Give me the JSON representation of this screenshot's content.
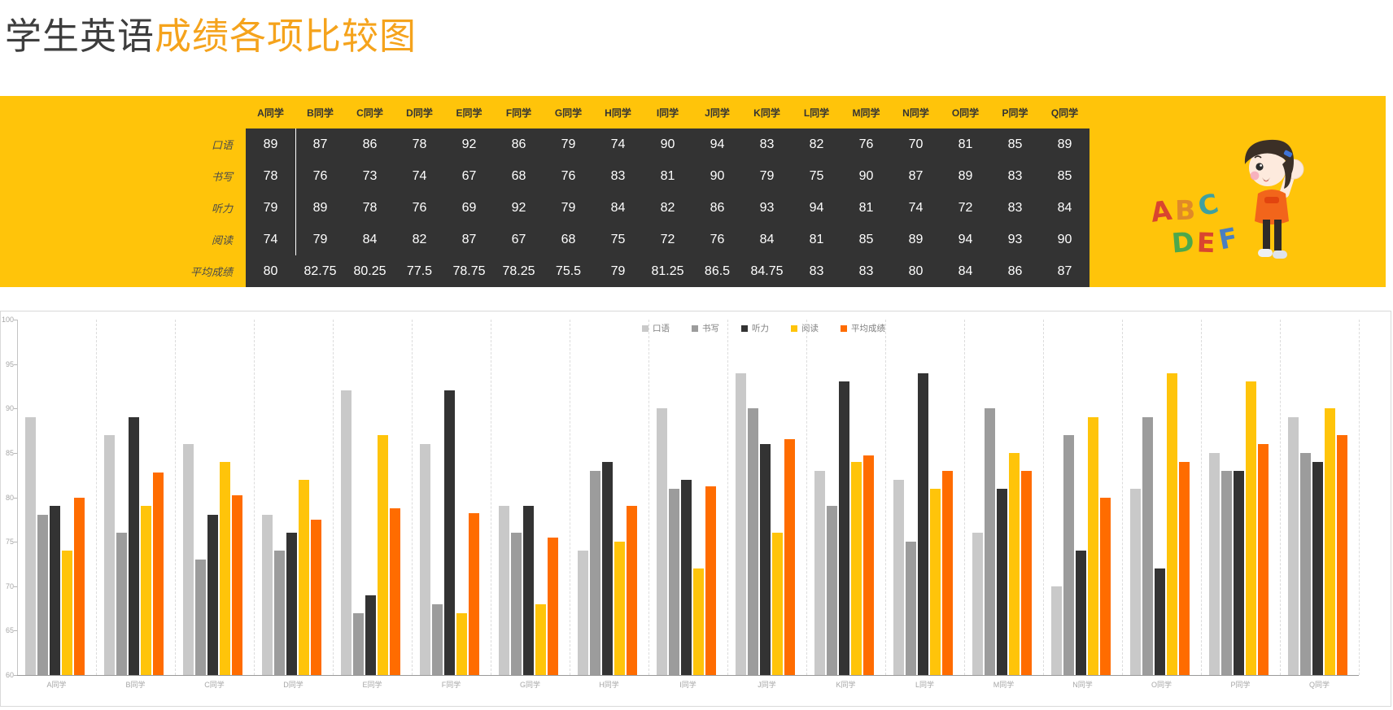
{
  "title": {
    "black": "学生英语",
    "orange": "成绩各项比较图"
  },
  "colors": {
    "banner_yellow": "#ffc40a",
    "table_dark": "#333333",
    "title_accent": "#f5a31c",
    "series_koyu": "#c9c9c9",
    "series_shuxie": "#9c9c9c",
    "series_tingli": "#333333",
    "series_yuedu": "#ffc40a",
    "series_pingjun": "#ff6c00"
  },
  "table": {
    "students": [
      "A同学",
      "B同学",
      "C同学",
      "D同学",
      "E同学",
      "F同学",
      "G同学",
      "H同学",
      "I同学",
      "J同学",
      "K同学",
      "L同学",
      "M同学",
      "N同学",
      "O同学",
      "P同学",
      "Q同学"
    ],
    "rows": [
      {
        "label": "口语",
        "values": [
          89,
          87,
          86,
          78,
          92,
          86,
          79,
          74,
          90,
          94,
          83,
          82,
          76,
          70,
          81,
          85,
          89
        ]
      },
      {
        "label": "书写",
        "values": [
          78,
          76,
          73,
          74,
          67,
          68,
          76,
          83,
          81,
          90,
          79,
          75,
          90,
          87,
          89,
          83,
          85
        ]
      },
      {
        "label": "听力",
        "values": [
          79,
          89,
          78,
          76,
          69,
          92,
          79,
          84,
          82,
          86,
          93,
          94,
          81,
          74,
          72,
          83,
          84
        ]
      },
      {
        "label": "阅读",
        "values": [
          74,
          79,
          84,
          82,
          87,
          67,
          68,
          75,
          72,
          76,
          84,
          81,
          85,
          89,
          94,
          93,
          90
        ]
      },
      {
        "label": "平均成绩",
        "values": [
          80,
          82.75,
          80.25,
          77.5,
          78.75,
          78.25,
          75.5,
          79,
          81.25,
          86.5,
          84.75,
          83,
          83,
          80,
          84,
          86,
          87
        ]
      }
    ]
  },
  "decoration": {
    "letters_line1": [
      "A",
      "B",
      "C"
    ],
    "letters_line2": [
      "D",
      "E",
      "F"
    ],
    "letter_colors_line1": [
      "#d9452f",
      "#e08a28",
      "#3fa0a0"
    ],
    "letter_colors_line2": [
      "#4ca84c",
      "#d9452f",
      "#4a7fc0"
    ]
  },
  "chart_data": {
    "type": "bar",
    "title": "",
    "xlabel": "",
    "ylabel": "",
    "categories": [
      "A同学",
      "B同学",
      "C同学",
      "D同学",
      "E同学",
      "F同学",
      "G同学",
      "H同学",
      "I同学",
      "J同学",
      "K同学",
      "L同学",
      "M同学",
      "N同学",
      "O同学",
      "P同学",
      "Q同学"
    ],
    "series": [
      {
        "name": "口语",
        "color": "#c9c9c9",
        "values": [
          89,
          87,
          86,
          78,
          92,
          86,
          79,
          74,
          90,
          94,
          83,
          82,
          76,
          70,
          81,
          85,
          89
        ]
      },
      {
        "name": "书写",
        "color": "#9c9c9c",
        "values": [
          78,
          76,
          73,
          74,
          67,
          68,
          76,
          83,
          81,
          90,
          79,
          75,
          90,
          87,
          89,
          83,
          85
        ]
      },
      {
        "name": "听力",
        "color": "#333333",
        "values": [
          79,
          89,
          78,
          76,
          69,
          92,
          79,
          84,
          82,
          86,
          93,
          94,
          81,
          74,
          72,
          83,
          84
        ]
      },
      {
        "name": "阅读",
        "color": "#ffc40a",
        "values": [
          74,
          79,
          84,
          82,
          87,
          67,
          68,
          75,
          72,
          76,
          84,
          81,
          85,
          89,
          94,
          93,
          90
        ]
      },
      {
        "name": "平均成绩",
        "color": "#ff6c00",
        "values": [
          80,
          82.75,
          80.25,
          77.5,
          78.75,
          78.25,
          75.5,
          79,
          81.25,
          86.5,
          84.75,
          83,
          83,
          80,
          84,
          86,
          87
        ]
      }
    ],
    "ylim": [
      60,
      100
    ],
    "ytick_step": 5,
    "legend_position": "top-center",
    "grid": "vertical-dashed"
  }
}
